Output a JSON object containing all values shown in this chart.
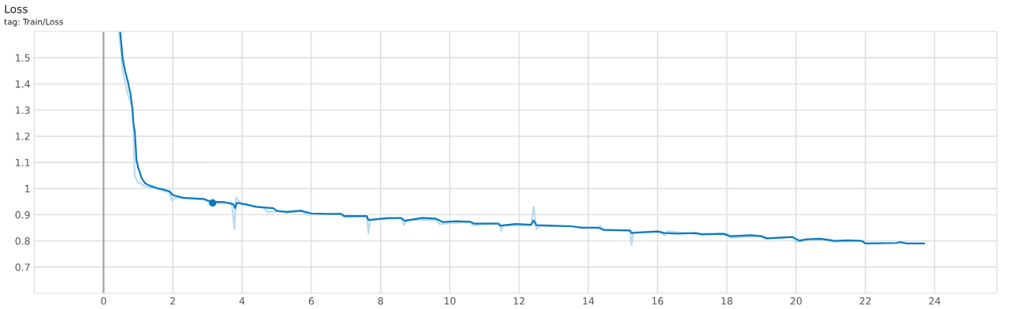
{
  "chart_data": {
    "type": "line",
    "title": "Loss",
    "subtitle": "tag: Train/Loss",
    "xlim": [
      -2,
      25.8
    ],
    "ylim": [
      0.6,
      1.6
    ],
    "xticks": [
      0,
      2,
      4,
      6,
      8,
      10,
      12,
      14,
      16,
      18,
      20,
      22,
      24
    ],
    "yticks": [
      0.7,
      0.8,
      0.9,
      1,
      1.1,
      1.2,
      1.3,
      1.4,
      1.5
    ],
    "grid": true,
    "marker": "none",
    "line_style": "solid",
    "ref_lines": [
      {
        "axis": "x",
        "value": 0,
        "color": "#9e9e9e"
      }
    ],
    "series": [
      {
        "color": "#bcd9ee",
        "x": [
          0.45,
          0.55,
          0.7,
          0.85,
          0.9,
          1.0,
          1.05,
          1.15,
          1.5,
          1.9,
          1.97,
          2.1,
          2.9,
          3.1,
          3.7,
          3.78,
          3.82,
          4.0,
          4.6,
          4.75,
          5.0,
          5.7,
          5.85,
          6.9,
          6.95,
          7.6,
          7.65,
          7.7,
          8.6,
          8.67,
          8.75,
          9.6,
          9.7,
          10.6,
          10.65,
          11.45,
          11.48,
          11.55,
          12.35,
          12.42,
          12.5,
          12.6,
          14.3,
          14.35,
          14.45,
          15.2,
          15.25,
          15.3,
          16.1,
          16.2,
          16.3,
          17.2,
          17.3,
          18.0,
          18.1,
          19.0,
          19.1,
          19.9,
          20.0,
          20.1,
          21.0,
          21.1,
          21.9,
          22.0,
          22.9,
          23.0,
          23.2,
          23.7
        ],
        "values": [
          1.6,
          1.45,
          1.36,
          1.3,
          1.05,
          1.02,
          1.025,
          1.01,
          1.0,
          0.985,
          0.955,
          0.965,
          0.958,
          0.943,
          0.945,
          0.845,
          0.965,
          0.94,
          0.928,
          0.91,
          0.912,
          0.917,
          0.9,
          0.903,
          0.89,
          0.895,
          0.83,
          0.88,
          0.887,
          0.86,
          0.88,
          0.88,
          0.865,
          0.872,
          0.86,
          0.866,
          0.838,
          0.858,
          0.86,
          0.93,
          0.845,
          0.858,
          0.853,
          0.858,
          0.84,
          0.84,
          0.785,
          0.832,
          0.835,
          0.82,
          0.838,
          0.825,
          0.828,
          0.828,
          0.812,
          0.818,
          0.808,
          0.815,
          0.795,
          0.805,
          0.806,
          0.797,
          0.8,
          0.79,
          0.792,
          0.798,
          0.79,
          0.79
        ]
      },
      {
        "color": "#0b7bbf",
        "x": [
          0.48,
          0.55,
          0.62,
          0.7,
          0.78,
          0.83,
          0.86,
          0.9,
          0.93,
          0.95,
          1.0,
          1.1,
          1.2,
          1.35,
          1.6,
          1.9,
          2.0,
          2.3,
          2.9,
          3.1,
          3.5,
          3.75,
          3.8,
          3.85,
          4.1,
          4.4,
          4.9,
          5.0,
          5.3,
          5.7,
          6.0,
          6.5,
          6.85,
          6.95,
          7.6,
          7.65,
          8.2,
          8.6,
          8.7,
          9.2,
          9.6,
          9.8,
          10.2,
          10.6,
          10.7,
          11.4,
          11.45,
          11.9,
          12.35,
          12.42,
          12.5,
          13.0,
          13.5,
          13.8,
          14.3,
          14.45,
          15.2,
          15.25,
          15.5,
          16.0,
          16.2,
          16.6,
          17.1,
          17.3,
          17.9,
          18.1,
          18.7,
          19.0,
          19.15,
          19.9,
          20.1,
          20.3,
          20.7,
          21.1,
          21.5,
          21.9,
          22.0,
          22.9,
          23.0,
          23.2,
          23.7
        ],
        "values": [
          1.6,
          1.5,
          1.45,
          1.41,
          1.36,
          1.31,
          1.25,
          1.22,
          1.16,
          1.11,
          1.08,
          1.04,
          1.02,
          1.01,
          1.0,
          0.99,
          0.975,
          0.965,
          0.96,
          0.95,
          0.948,
          0.94,
          0.925,
          0.945,
          0.94,
          0.93,
          0.925,
          0.915,
          0.91,
          0.915,
          0.905,
          0.903,
          0.903,
          0.895,
          0.895,
          0.88,
          0.887,
          0.887,
          0.877,
          0.888,
          0.885,
          0.872,
          0.875,
          0.873,
          0.866,
          0.866,
          0.858,
          0.865,
          0.862,
          0.878,
          0.86,
          0.858,
          0.856,
          0.85,
          0.85,
          0.842,
          0.84,
          0.83,
          0.832,
          0.836,
          0.83,
          0.828,
          0.83,
          0.825,
          0.827,
          0.818,
          0.822,
          0.818,
          0.81,
          0.815,
          0.8,
          0.806,
          0.808,
          0.8,
          0.802,
          0.8,
          0.79,
          0.792,
          0.795,
          0.79,
          0.79
        ]
      },
      {
        "type": "scatter",
        "marker": "circle",
        "color": "#0b7bbf",
        "x": [
          3.15
        ],
        "values": [
          0.945
        ]
      }
    ]
  }
}
